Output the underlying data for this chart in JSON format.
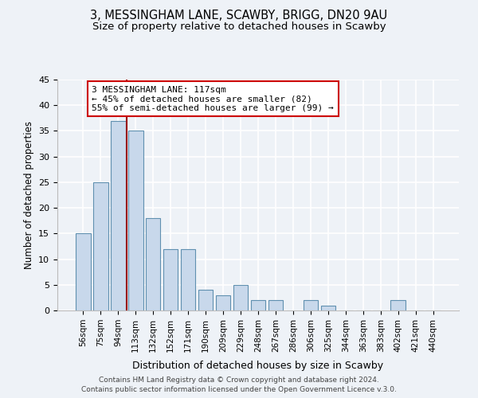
{
  "title": "3, MESSINGHAM LANE, SCAWBY, BRIGG, DN20 9AU",
  "subtitle": "Size of property relative to detached houses in Scawby",
  "xlabel": "Distribution of detached houses by size in Scawby",
  "ylabel": "Number of detached properties",
  "bar_labels": [
    "56sqm",
    "75sqm",
    "94sqm",
    "113sqm",
    "132sqm",
    "152sqm",
    "171sqm",
    "190sqm",
    "209sqm",
    "229sqm",
    "248sqm",
    "267sqm",
    "286sqm",
    "306sqm",
    "325sqm",
    "344sqm",
    "363sqm",
    "383sqm",
    "402sqm",
    "421sqm",
    "440sqm"
  ],
  "bar_values": [
    15,
    25,
    37,
    35,
    18,
    12,
    12,
    4,
    3,
    5,
    2,
    2,
    0,
    2,
    1,
    0,
    0,
    0,
    2,
    0,
    0
  ],
  "bar_color": "#c8d8eb",
  "bar_edge_color": "#6090b0",
  "vline_color": "#990000",
  "annotation_box_title": "3 MESSINGHAM LANE: 117sqm",
  "annotation_line1": "← 45% of detached houses are smaller (82)",
  "annotation_line2": "55% of semi-detached houses are larger (99) →",
  "annotation_box_edgecolor": "#cc0000",
  "annotation_box_facecolor": "#ffffff",
  "ylim": [
    0,
    45
  ],
  "yticks": [
    0,
    5,
    10,
    15,
    20,
    25,
    30,
    35,
    40,
    45
  ],
  "footer1": "Contains HM Land Registry data © Crown copyright and database right 2024.",
  "footer2": "Contains public sector information licensed under the Open Government Licence v.3.0.",
  "bg_color": "#eef2f7",
  "grid_color": "#ffffff",
  "title_fontsize": 10.5,
  "subtitle_fontsize": 9.5
}
